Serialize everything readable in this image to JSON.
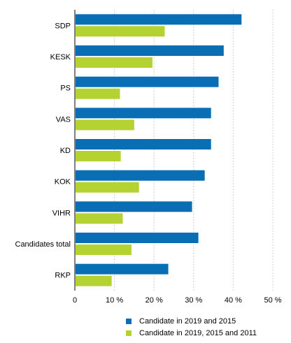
{
  "chart_data": {
    "type": "bar",
    "orientation": "horizontal",
    "categories": [
      "SDP",
      "KESK",
      "PS",
      "VAS",
      "KD",
      "KOK",
      "VIHR",
      "Candidates total",
      "RKP"
    ],
    "series": [
      {
        "name": "Candidate in 2019 and 2015",
        "color": "#0a6eb4",
        "values": [
          42.1,
          37.6,
          36.3,
          34.4,
          34.4,
          32.8,
          29.6,
          31.2,
          23.6
        ]
      },
      {
        "name": "Candidate in 2019, 2015 and 2011",
        "color": "#b4d232",
        "values": [
          22.7,
          19.6,
          11.4,
          15.0,
          11.6,
          16.2,
          12.1,
          14.3,
          9.3
        ]
      }
    ],
    "x_ticks": [
      "0",
      "10 %",
      "20 %",
      "30 %",
      "40 %",
      "50 %"
    ],
    "xlim": [
      0,
      50
    ],
    "grid": true,
    "legend_position": "bottom"
  }
}
